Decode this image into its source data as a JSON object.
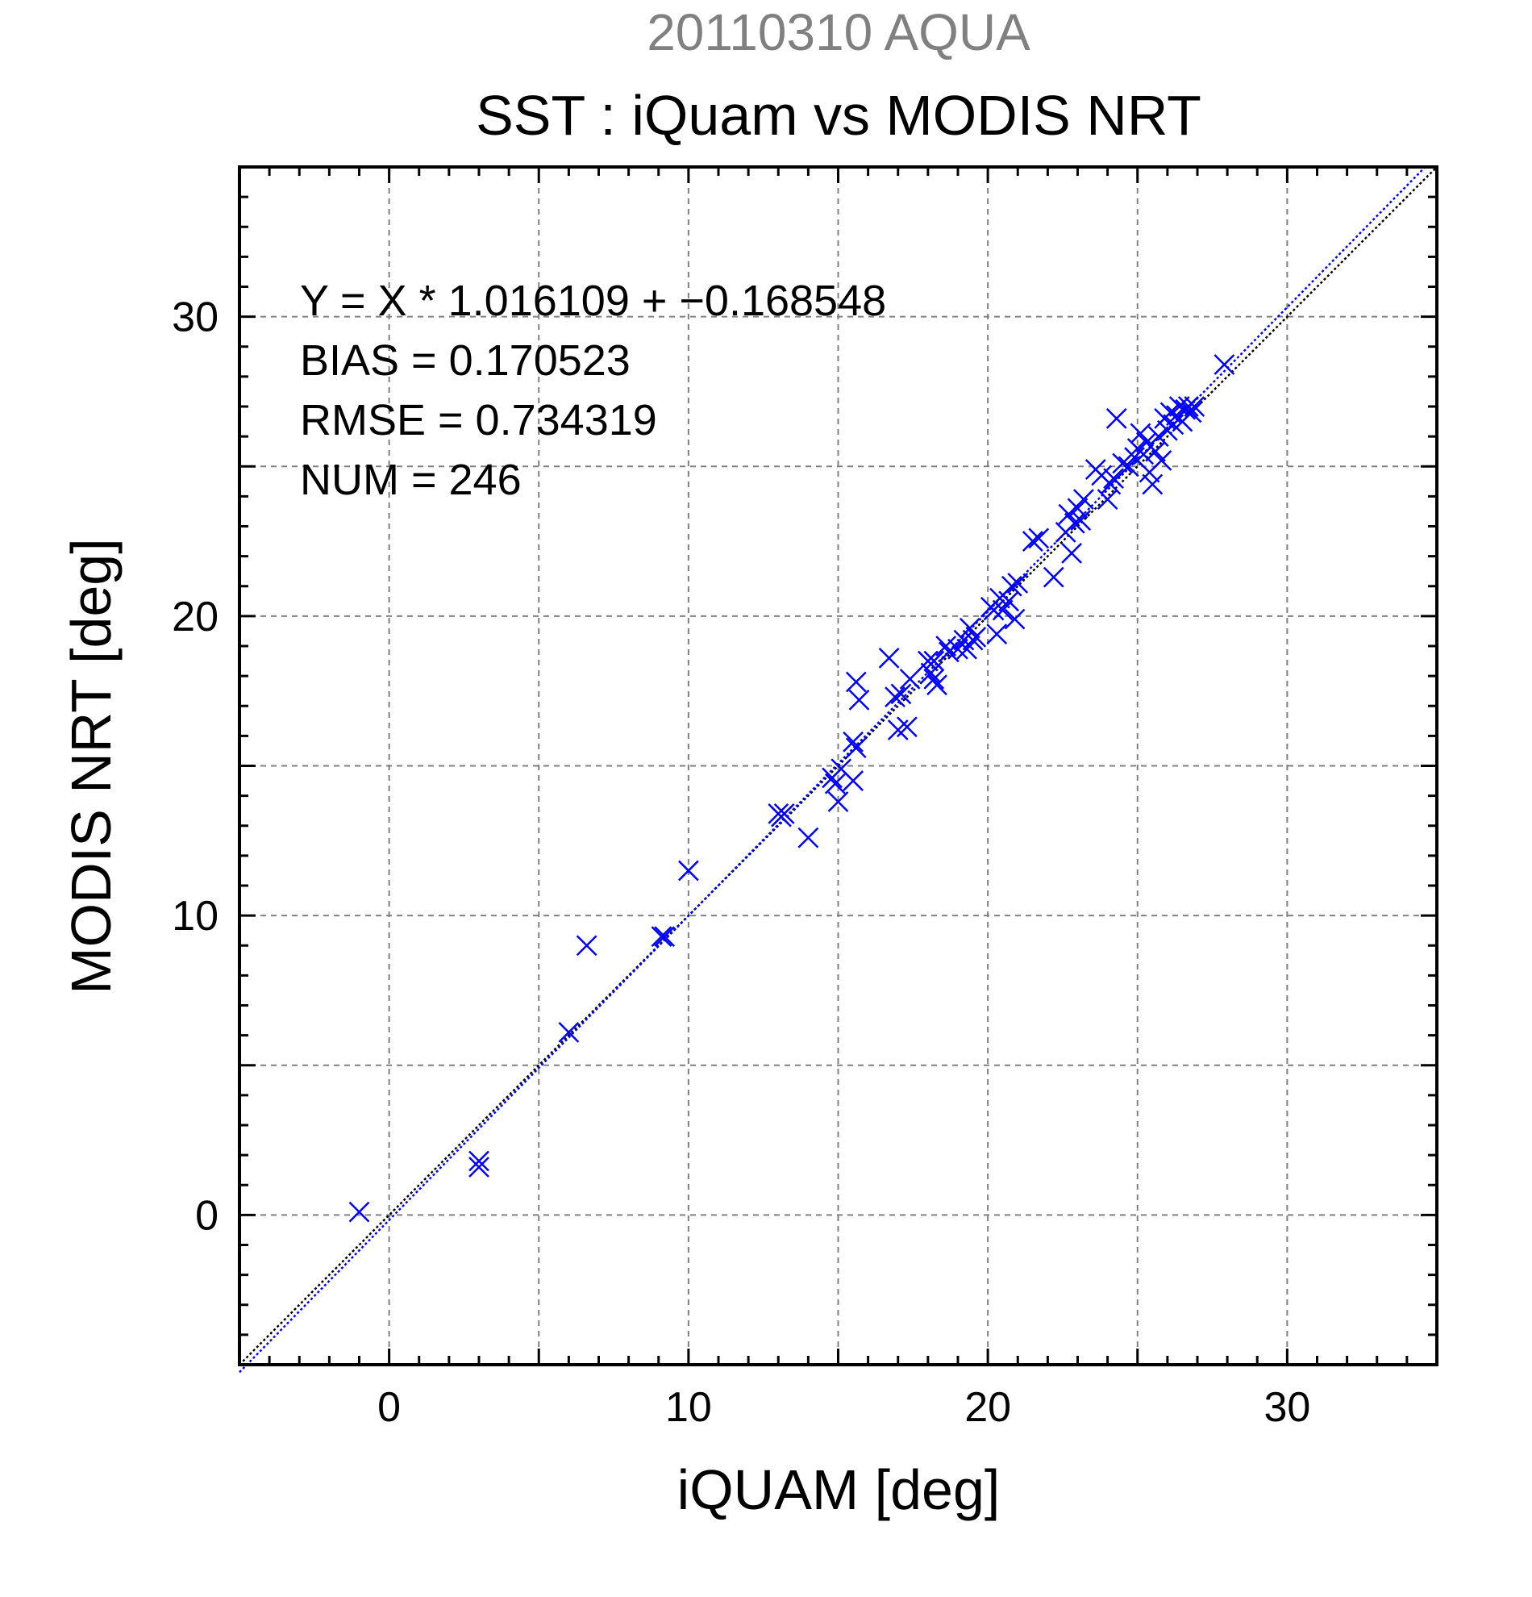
{
  "chart_data": {
    "type": "scatter",
    "suptitle": "20110310 AQUA",
    "title": "SST : iQuam vs MODIS NRT",
    "xlabel": "iQUAM [deg]",
    "ylabel": "MODIS NRT [deg]",
    "xlim": [
      -5,
      35
    ],
    "ylim": [
      -5,
      35
    ],
    "xticks": [
      0,
      10,
      20,
      30
    ],
    "yticks": [
      0,
      10,
      20,
      30
    ],
    "xtick_labels": [
      "0",
      "10",
      "20",
      "30"
    ],
    "ytick_labels": [
      "0",
      "10",
      "20",
      "30"
    ],
    "grid": true,
    "marker": "x",
    "annotations": [
      "Y = X * 1.016109 + −0.168548",
      "BIAS = 0.170523",
      "RMSE = 0.734319",
      "NUM = 246"
    ],
    "regression": {
      "slope": 1.016109,
      "intercept": -0.168548
    },
    "points": [
      [
        -1.0,
        0.1
      ],
      [
        3.0,
        1.6
      ],
      [
        3.0,
        1.8
      ],
      [
        6.0,
        6.1
      ],
      [
        6.6,
        9.0
      ],
      [
        9.1,
        9.3
      ],
      [
        9.2,
        9.3
      ],
      [
        10.0,
        11.5
      ],
      [
        13.0,
        13.4
      ],
      [
        13.1,
        13.3
      ],
      [
        13.2,
        13.4
      ],
      [
        14.0,
        12.6
      ],
      [
        14.8,
        14.6
      ],
      [
        14.9,
        14.4
      ],
      [
        15.0,
        13.8
      ],
      [
        15.1,
        14.9
      ],
      [
        15.5,
        14.5
      ],
      [
        15.6,
        15.6
      ],
      [
        15.5,
        15.8
      ],
      [
        15.7,
        17.2
      ],
      [
        15.6,
        17.8
      ],
      [
        16.7,
        18.6
      ],
      [
        16.9,
        17.3
      ],
      [
        17.0,
        16.2
      ],
      [
        17.1,
        17.4
      ],
      [
        17.3,
        16.3
      ],
      [
        17.4,
        17.9
      ],
      [
        18.0,
        18.5
      ],
      [
        18.1,
        18.1
      ],
      [
        18.2,
        17.9
      ],
      [
        18.2,
        18.5
      ],
      [
        18.3,
        17.7
      ],
      [
        18.6,
        19.0
      ],
      [
        18.7,
        18.8
      ],
      [
        19.0,
        18.9
      ],
      [
        19.2,
        19.2
      ],
      [
        19.3,
        18.9
      ],
      [
        19.4,
        19.6
      ],
      [
        19.5,
        19.2
      ],
      [
        19.6,
        19.3
      ],
      [
        20.1,
        20.3
      ],
      [
        20.2,
        20.2
      ],
      [
        20.3,
        19.4
      ],
      [
        20.4,
        20.6
      ],
      [
        20.5,
        20.2
      ],
      [
        20.7,
        20.5
      ],
      [
        20.8,
        21.0
      ],
      [
        20.9,
        19.9
      ],
      [
        21.0,
        21.1
      ],
      [
        21.5,
        22.5
      ],
      [
        21.7,
        22.6
      ],
      [
        22.2,
        21.3
      ],
      [
        22.6,
        22.8
      ],
      [
        22.7,
        23.4
      ],
      [
        22.8,
        22.1
      ],
      [
        22.9,
        23.1
      ],
      [
        23.0,
        23.6
      ],
      [
        23.1,
        23.2
      ],
      [
        23.2,
        23.9
      ],
      [
        23.6,
        24.9
      ],
      [
        23.8,
        24.7
      ],
      [
        24.0,
        23.9
      ],
      [
        24.1,
        24.4
      ],
      [
        24.2,
        24.6
      ],
      [
        24.3,
        26.6
      ],
      [
        24.5,
        25.1
      ],
      [
        24.7,
        25.0
      ],
      [
        24.9,
        25.3
      ],
      [
        25.0,
        25.6
      ],
      [
        25.1,
        26.1
      ],
      [
        25.2,
        25.4
      ],
      [
        25.3,
        25.8
      ],
      [
        25.4,
        24.8
      ],
      [
        25.5,
        24.4
      ],
      [
        25.6,
        25.5
      ],
      [
        25.7,
        26.0
      ],
      [
        25.8,
        25.2
      ],
      [
        25.9,
        26.6
      ],
      [
        26.0,
        26.2
      ],
      [
        26.1,
        26.8
      ],
      [
        26.2,
        26.4
      ],
      [
        26.3,
        26.7
      ],
      [
        26.4,
        27.0
      ],
      [
        26.5,
        26.5
      ],
      [
        26.6,
        26.9
      ],
      [
        26.7,
        27.0
      ],
      [
        26.8,
        26.8
      ],
      [
        26.9,
        27.0
      ],
      [
        27.9,
        28.4
      ]
    ]
  }
}
